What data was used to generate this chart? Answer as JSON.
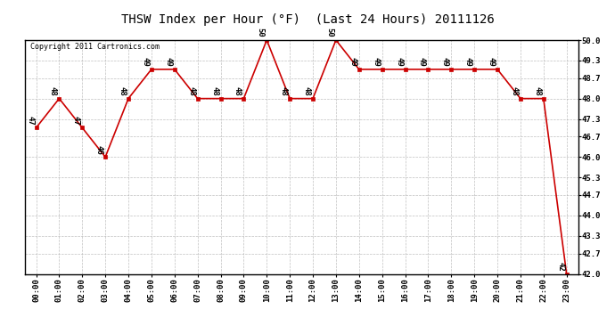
{
  "title": "THSW Index per Hour (°F)  (Last 24 Hours) 20111126",
  "copyright": "Copyright 2011 Cartronics.com",
  "hours": [
    "00:00",
    "01:00",
    "02:00",
    "03:00",
    "04:00",
    "05:00",
    "06:00",
    "07:00",
    "08:00",
    "09:00",
    "10:00",
    "11:00",
    "12:00",
    "13:00",
    "14:00",
    "15:00",
    "16:00",
    "17:00",
    "18:00",
    "19:00",
    "20:00",
    "21:00",
    "22:00",
    "23:00"
  ],
  "values": [
    47,
    48,
    47,
    46,
    48,
    49,
    49,
    48,
    48,
    48,
    50,
    48,
    48,
    50,
    49,
    49,
    49,
    49,
    49,
    49,
    49,
    48,
    48,
    42
  ],
  "ylim_min": 42.0,
  "ylim_max": 50.0,
  "yticks": [
    42.0,
    42.7,
    43.3,
    44.0,
    44.7,
    45.3,
    46.0,
    46.7,
    47.3,
    48.0,
    48.7,
    49.3,
    50.0
  ],
  "line_color": "#cc0000",
  "marker_color": "#cc0000",
  "bg_color": "#ffffff",
  "grid_color": "#b0b0b0",
  "title_fontsize": 10,
  "label_fontsize": 6.5,
  "annotation_fontsize": 6.5,
  "copyright_fontsize": 6
}
